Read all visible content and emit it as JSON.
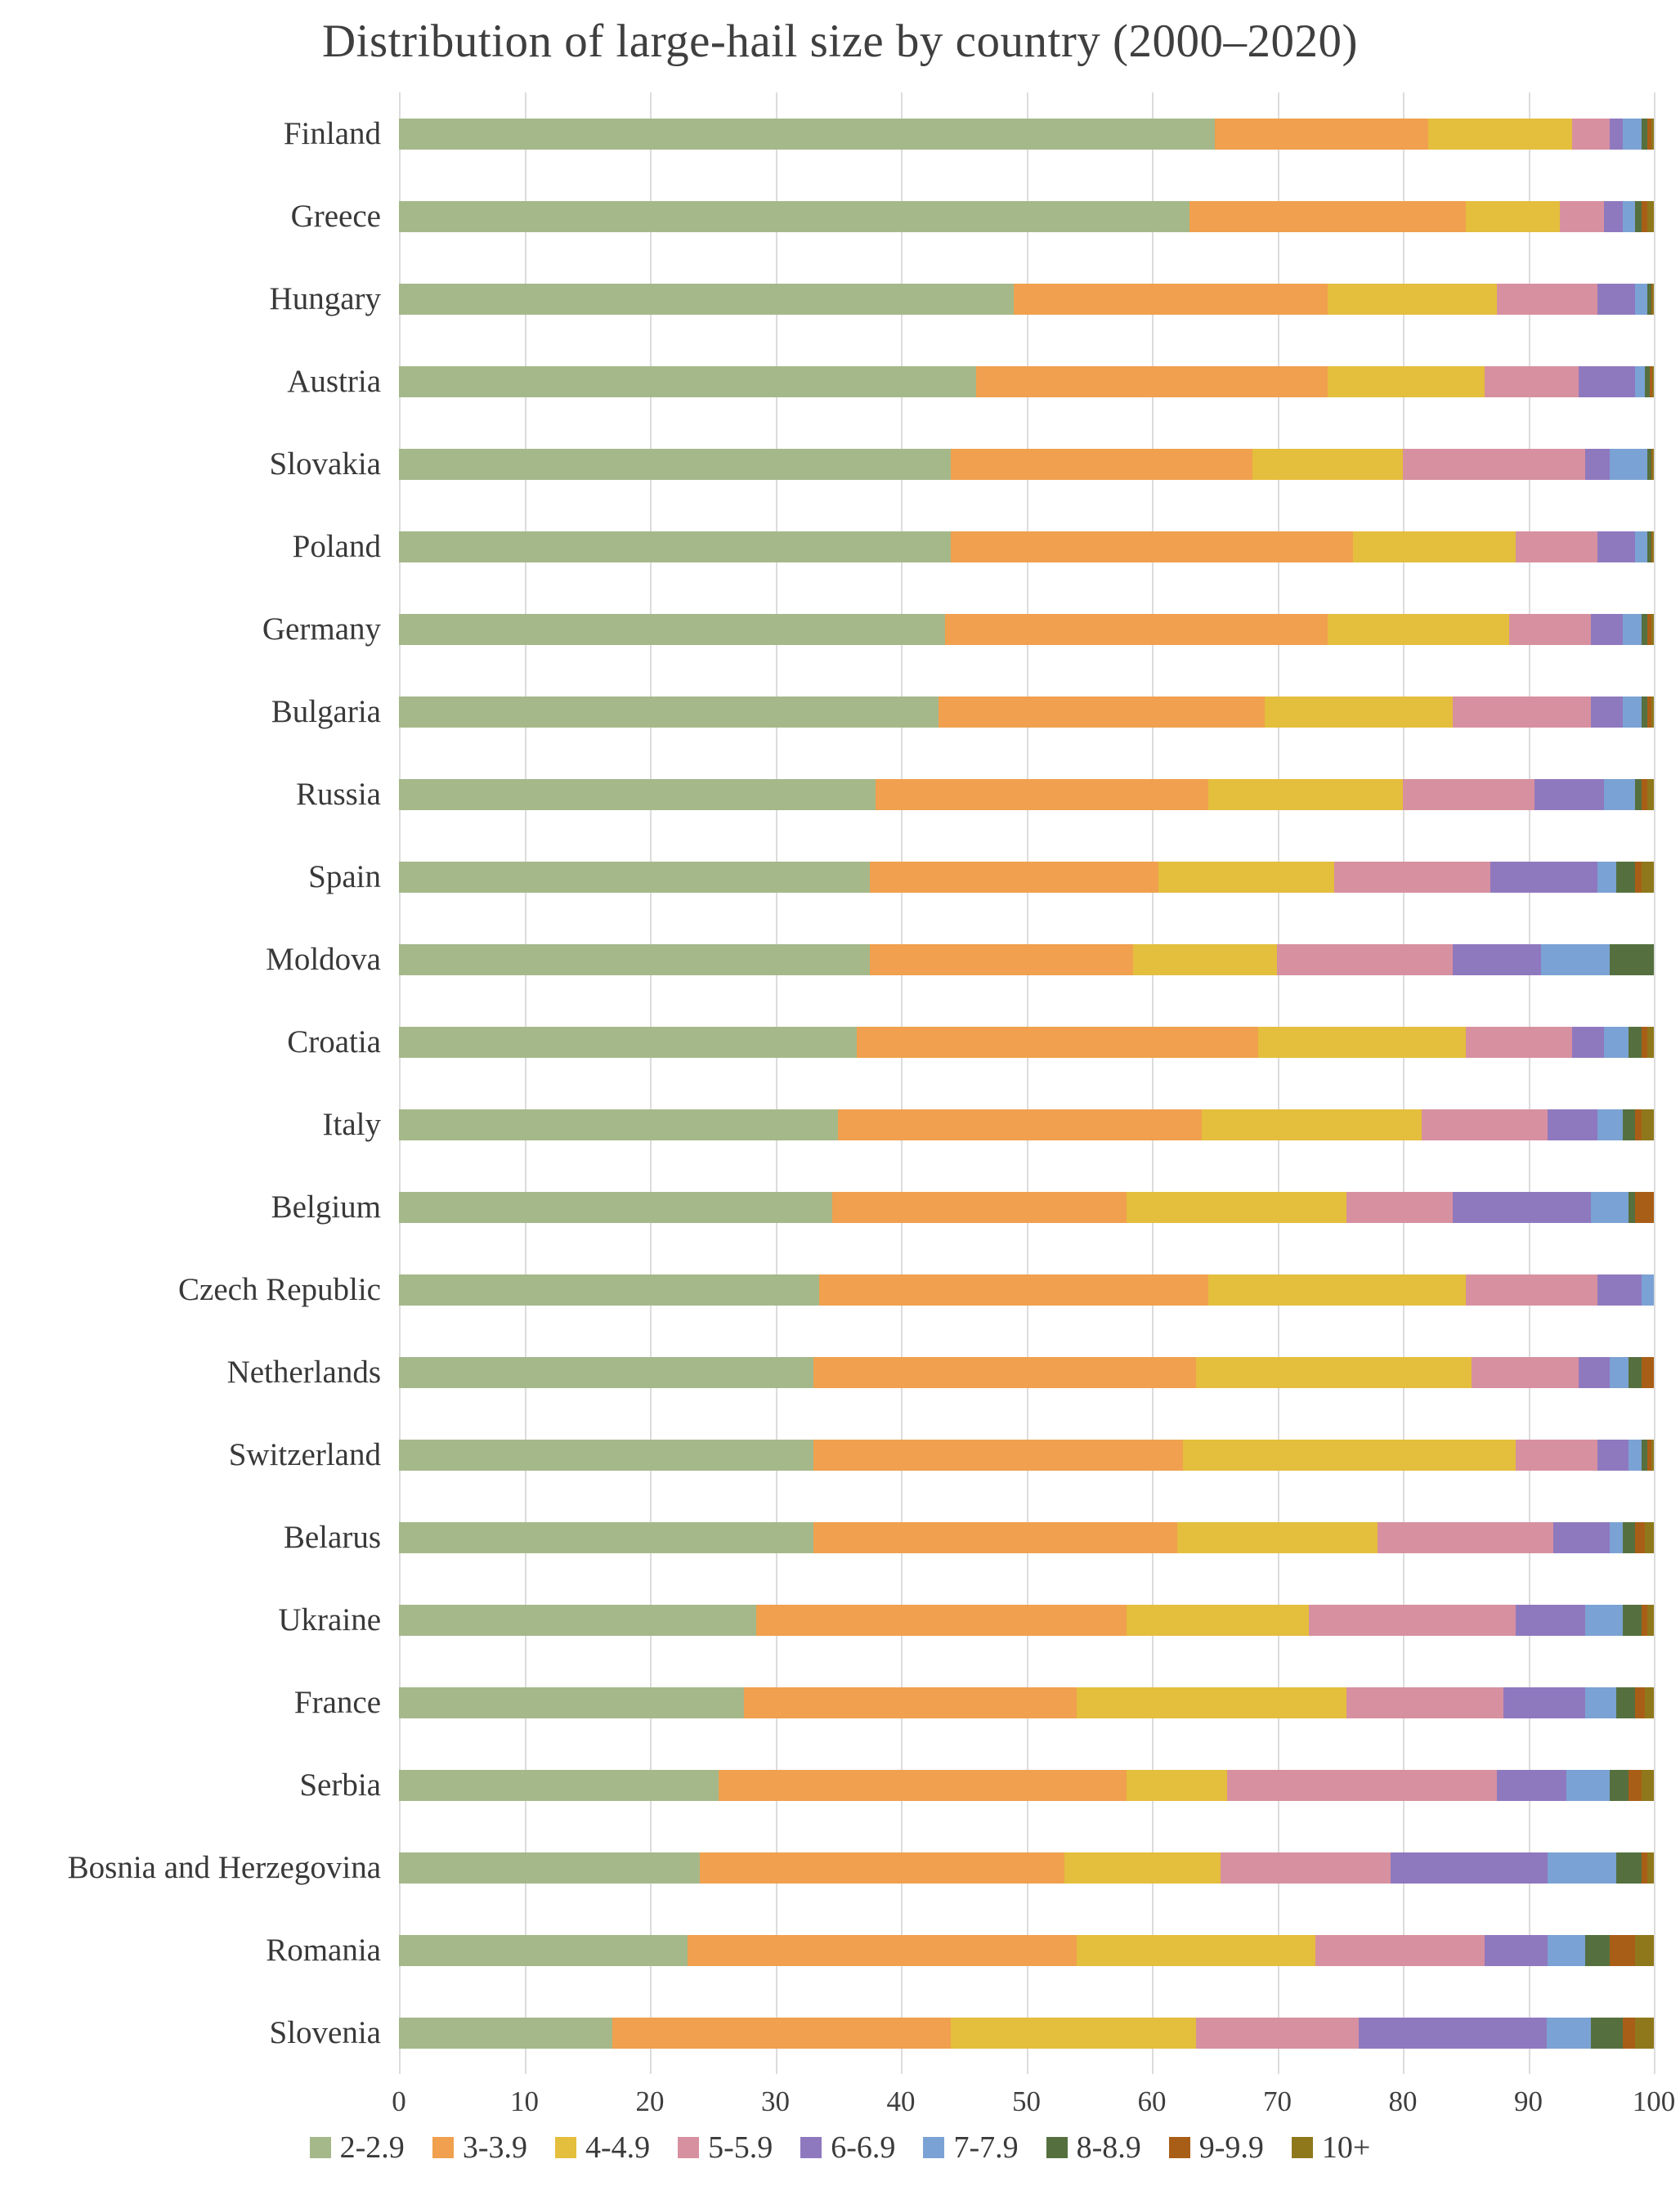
{
  "title": "Distribution of large-hail size by country (2000–2020)",
  "chart_data": {
    "type": "bar",
    "orientation": "horizontal",
    "stacked": true,
    "unit": "%",
    "title": "Distribution of large-hail size by country (2000–2020)",
    "xlabel": "",
    "ylabel": "",
    "xlim": [
      0,
      100
    ],
    "x_ticks": [
      0,
      10,
      20,
      30,
      40,
      50,
      60,
      70,
      80,
      90,
      100
    ],
    "grid": true,
    "legend_position": "bottom",
    "categories": [
      "Finland",
      "Greece",
      "Hungary",
      "Austria",
      "Slovakia",
      "Poland",
      "Germany",
      "Bulgaria",
      "Russia",
      "Spain",
      "Moldova",
      "Croatia",
      "Italy",
      "Belgium",
      "Czech Republic",
      "Netherlands",
      "Switzerland",
      "Belarus",
      "Ukraine",
      "France",
      "Serbia",
      "Bosnia and Herzegovina",
      "Romania",
      "Slovenia"
    ],
    "series": [
      {
        "name": "2-2.9",
        "color": "#a5b88a",
        "values": [
          65,
          63,
          49,
          46,
          44,
          44,
          43.5,
          43,
          38,
          37.5,
          37.5,
          36.5,
          35,
          34.5,
          33.5,
          33,
          33,
          33,
          28.5,
          27.5,
          25.5,
          24,
          23,
          17
        ]
      },
      {
        "name": "3-3.9",
        "color": "#f0a04e",
        "values": [
          17,
          22,
          25,
          28,
          24,
          32,
          30.5,
          26,
          26.5,
          23,
          21,
          32,
          29,
          23.5,
          31,
          30.5,
          29.5,
          29,
          29.5,
          26.5,
          32.5,
          29,
          31,
          27
        ]
      },
      {
        "name": "4-4.9",
        "color": "#e4be3d",
        "values": [
          11.5,
          7.5,
          13.5,
          12.5,
          12,
          13,
          14.5,
          15,
          15.5,
          14,
          11.5,
          16.5,
          17.5,
          17.5,
          20.5,
          22,
          26.5,
          16,
          14.5,
          21.5,
          8,
          12.5,
          19,
          19.5
        ]
      },
      {
        "name": "5-5.9",
        "color": "#d790a0",
        "values": [
          3,
          3.5,
          8,
          7.5,
          14.5,
          6.5,
          6.5,
          11,
          10.5,
          12.5,
          14,
          8.5,
          10,
          8.5,
          10.5,
          8.5,
          6.5,
          14,
          16.5,
          12.5,
          21.5,
          13.5,
          13.5,
          13
        ]
      },
      {
        "name": "6-6.9",
        "color": "#8f79be",
        "values": [
          1,
          1.5,
          3,
          4.5,
          2,
          3,
          2.5,
          2.5,
          5.5,
          8.5,
          7,
          2.5,
          4,
          11,
          3.5,
          2.5,
          2.5,
          4.5,
          5.5,
          6.5,
          5.5,
          12.5,
          5,
          15
        ]
      },
      {
        "name": "7-7.9",
        "color": "#7ba2d4",
        "values": [
          1.5,
          1,
          1,
          0.8,
          3,
          1,
          1.5,
          1.5,
          2.5,
          1.5,
          5.5,
          2,
          2,
          3,
          1,
          1.5,
          1,
          1,
          3,
          2.5,
          3.5,
          5.5,
          3,
          3.5
        ]
      },
      {
        "name": "8-8.9",
        "color": "#55703e",
        "values": [
          0.5,
          0.5,
          0.3,
          0.4,
          0.3,
          0.3,
          0.5,
          0.5,
          0.5,
          1.5,
          3.5,
          1,
          1,
          0.5,
          0,
          1,
          0.5,
          1,
          1.5,
          1.5,
          1.5,
          2,
          2,
          2.5
        ]
      },
      {
        "name": "9-9.9",
        "color": "#a95e17",
        "values": [
          0.3,
          0.5,
          0.1,
          0.2,
          0.1,
          0.1,
          0.3,
          0.3,
          0.5,
          0.5,
          0,
          0.5,
          0.5,
          1.5,
          0,
          1,
          0.3,
          0.8,
          0.5,
          0.8,
          1,
          0.5,
          2,
          1
        ]
      },
      {
        "name": "10+",
        "color": "#8e781b",
        "values": [
          0.2,
          0.5,
          0.1,
          0.1,
          0.1,
          0.1,
          0.2,
          0.2,
          0.5,
          1,
          0,
          0.5,
          1,
          0,
          0,
          0,
          0.2,
          0.7,
          0.5,
          0.7,
          1,
          0.5,
          1.5,
          1.5
        ]
      }
    ]
  }
}
